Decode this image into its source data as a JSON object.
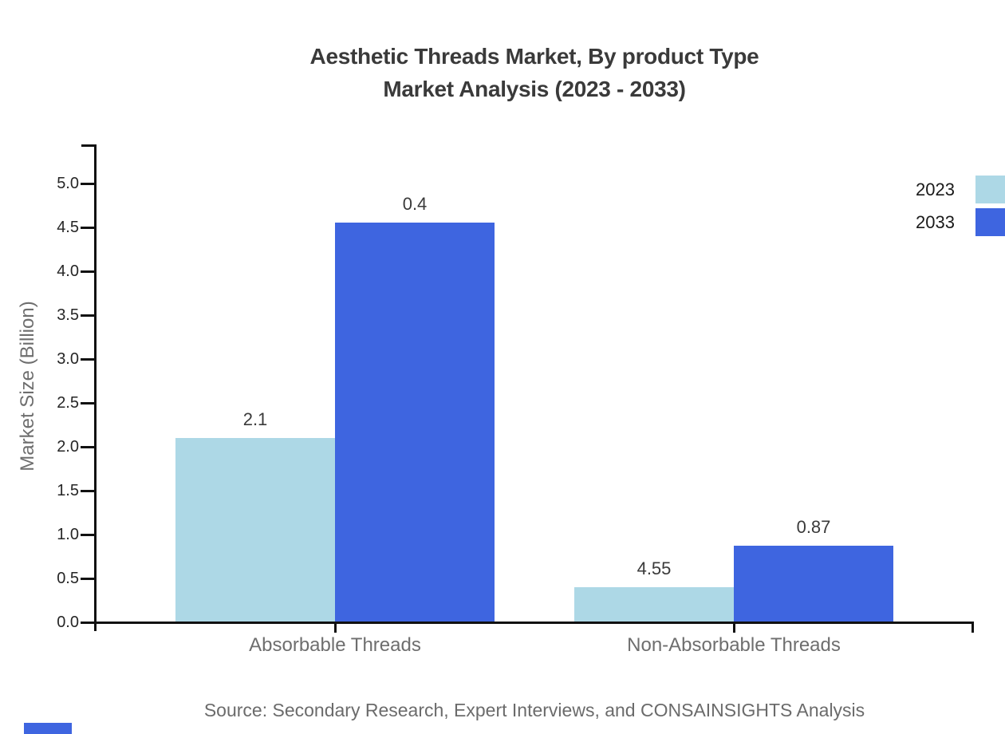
{
  "title": {
    "line1": "Aesthetic Threads Market, By product Type",
    "line2": "Market Analysis (2023 - 2033)"
  },
  "y_axis": {
    "label": "Market Size (Billion)",
    "tick_labels": [
      "0.0",
      "0.5",
      "1.0",
      "1.5",
      "2.0",
      "2.5",
      "3.0",
      "3.5",
      "4.0",
      "4.5",
      "5.0"
    ]
  },
  "legend": [
    {
      "label": "2023",
      "color": "#ADD8E6"
    },
    {
      "label": "2033",
      "color": "#3E65E0"
    }
  ],
  "source": "Source: Secondary Research, Expert Interviews, and CONSAINSIGHTS Analysis",
  "brand_color": "#3E65E0",
  "chart_data": {
    "type": "bar",
    "title": "Aesthetic Threads Market, By product Type Market Analysis (2023 - 2033)",
    "categories": [
      "Absorbable Threads",
      "Non-Absorbable Threads"
    ],
    "series": [
      {
        "name": "2023",
        "color": "#ADD8E6",
        "values": [
          2.1,
          0.4
        ]
      },
      {
        "name": "2033",
        "color": "#3E65E0",
        "values": [
          4.55,
          0.87
        ]
      }
    ],
    "value_labels": [
      [
        "2.1",
        "4.55"
      ],
      [
        "0.4",
        "0.87"
      ]
    ],
    "xlabel": "",
    "ylabel": "Market Size (Billion)",
    "ylim": [
      0,
      5.45
    ],
    "ytick_step": 0.5,
    "grid": false,
    "legend_position": "top-right"
  }
}
